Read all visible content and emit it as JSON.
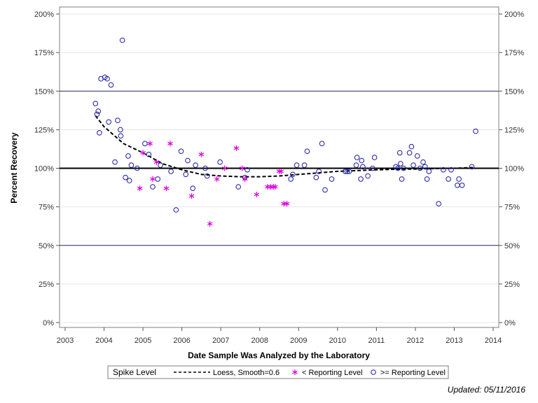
{
  "chart_data": {
    "type": "scatter",
    "xlabel": "Date Sample Was Analyzed by the Laboratory",
    "ylabel": "Percent Recovery",
    "x_ticks": [
      "2003",
      "2004",
      "2005",
      "2006",
      "2007",
      "2008",
      "2009",
      "2010",
      "2011",
      "2012",
      "2013",
      "2014"
    ],
    "xlim": [
      2003,
      2014
    ],
    "y_ticks": [
      "0%",
      "25%",
      "50%",
      "75%",
      "100%",
      "125%",
      "150%",
      "175%",
      "200%"
    ],
    "ylim": [
      0,
      200
    ],
    "reference_lines": [
      50,
      100,
      150
    ],
    "grid": true,
    "legend": {
      "title": "Spike Level",
      "position": "bottom",
      "entries": [
        "Loess, Smooth=0.6",
        "< Reporting Level",
        ">= Reporting Level"
      ]
    },
    "colors": {
      "loess": "#000000",
      "below": "#e000e0",
      "above": "#1a1aa6",
      "reference": "#2a2a6e"
    },
    "series": [
      {
        "name": ">= Reporting Level",
        "marker": "circle",
        "points": [
          [
            2003.78,
            142
          ],
          [
            2003.82,
            135
          ],
          [
            2003.85,
            137
          ],
          [
            2003.88,
            123
          ],
          [
            2003.92,
            158
          ],
          [
            2004.02,
            159
          ],
          [
            2004.08,
            158
          ],
          [
            2004.12,
            130
          ],
          [
            2004.18,
            154
          ],
          [
            2004.28,
            104
          ],
          [
            2004.35,
            131
          ],
          [
            2004.42,
            125
          ],
          [
            2004.43,
            121
          ],
          [
            2004.47,
            183
          ],
          [
            2004.55,
            94
          ],
          [
            2004.62,
            108
          ],
          [
            2004.65,
            92
          ],
          [
            2004.7,
            102
          ],
          [
            2004.85,
            100
          ],
          [
            2005.05,
            116
          ],
          [
            2005.15,
            109
          ],
          [
            2005.25,
            88
          ],
          [
            2005.38,
            93
          ],
          [
            2005.45,
            102
          ],
          [
            2005.72,
            98
          ],
          [
            2005.85,
            73
          ],
          [
            2005.98,
            111
          ],
          [
            2006.1,
            96
          ],
          [
            2006.15,
            105
          ],
          [
            2006.28,
            87
          ],
          [
            2006.35,
            102
          ],
          [
            2006.6,
            100
          ],
          [
            2006.65,
            95
          ],
          [
            2006.98,
            104
          ],
          [
            2007.45,
            88
          ],
          [
            2007.62,
            94
          ],
          [
            2007.68,
            99
          ],
          [
            2008.85,
            96
          ],
          [
            2008.8,
            93
          ],
          [
            2008.95,
            102
          ],
          [
            2009.15,
            102
          ],
          [
            2009.22,
            111
          ],
          [
            2009.45,
            94
          ],
          [
            2009.52,
            98
          ],
          [
            2009.6,
            116
          ],
          [
            2009.68,
            86
          ],
          [
            2009.85,
            93
          ],
          [
            2010.2,
            98
          ],
          [
            2010.25,
            98
          ],
          [
            2010.3,
            98
          ],
          [
            2010.48,
            102
          ],
          [
            2010.5,
            107
          ],
          [
            2010.6,
            93
          ],
          [
            2010.62,
            105
          ],
          [
            2010.65,
            101
          ],
          [
            2010.78,
            95
          ],
          [
            2010.9,
            100
          ],
          [
            2010.95,
            107
          ],
          [
            2011.5,
            101
          ],
          [
            2011.55,
            100
          ],
          [
            2011.6,
            110
          ],
          [
            2011.62,
            103
          ],
          [
            2011.65,
            93
          ],
          [
            2011.7,
            100
          ],
          [
            2011.85,
            110
          ],
          [
            2011.9,
            114
          ],
          [
            2011.95,
            102
          ],
          [
            2012.05,
            108
          ],
          [
            2012.12,
            100
          ],
          [
            2012.2,
            104
          ],
          [
            2012.25,
            101
          ],
          [
            2012.3,
            93
          ],
          [
            2012.35,
            98
          ],
          [
            2012.6,
            77
          ],
          [
            2012.72,
            99
          ],
          [
            2012.85,
            93
          ],
          [
            2012.92,
            99
          ],
          [
            2013.08,
            89
          ],
          [
            2013.12,
            93
          ],
          [
            2013.2,
            89
          ],
          [
            2013.45,
            101
          ],
          [
            2013.55,
            124
          ]
        ]
      },
      {
        "name": "< Reporting Level",
        "marker": "asterisk",
        "points": [
          [
            2004.92,
            87
          ],
          [
            2005.0,
            110
          ],
          [
            2005.18,
            116
          ],
          [
            2005.25,
            93
          ],
          [
            2005.35,
            104
          ],
          [
            2005.6,
            87
          ],
          [
            2005.7,
            116
          ],
          [
            2006.25,
            82
          ],
          [
            2006.5,
            109
          ],
          [
            2006.72,
            64
          ],
          [
            2006.9,
            93
          ],
          [
            2007.1,
            100
          ],
          [
            2007.4,
            113
          ],
          [
            2007.55,
            100
          ],
          [
            2007.62,
            93
          ],
          [
            2007.92,
            83
          ],
          [
            2008.2,
            88
          ],
          [
            2008.28,
            88
          ],
          [
            2008.35,
            88
          ],
          [
            2008.4,
            88
          ],
          [
            2008.5,
            98
          ],
          [
            2008.55,
            98
          ],
          [
            2008.62,
            77
          ],
          [
            2008.7,
            77
          ]
        ]
      },
      {
        "name": "Loess, Smooth=0.6",
        "marker": "dashed-line",
        "points": [
          [
            2003.78,
            134
          ],
          [
            2004.0,
            127
          ],
          [
            2004.5,
            116
          ],
          [
            2005.0,
            110
          ],
          [
            2005.5,
            103
          ],
          [
            2006.0,
            99
          ],
          [
            2006.5,
            96
          ],
          [
            2007.0,
            95
          ],
          [
            2007.5,
            94.5
          ],
          [
            2008.0,
            94.5
          ],
          [
            2008.5,
            95
          ],
          [
            2009.0,
            96
          ],
          [
            2009.5,
            97
          ],
          [
            2010.0,
            98
          ],
          [
            2010.5,
            98.5
          ],
          [
            2011.0,
            99
          ],
          [
            2011.5,
            99.3
          ],
          [
            2012.0,
            99.5
          ],
          [
            2012.5,
            99.8
          ],
          [
            2013.0,
            100
          ],
          [
            2013.5,
            100.5
          ]
        ]
      }
    ]
  },
  "footer": {
    "updated": "Updated: 05/11/2016"
  }
}
